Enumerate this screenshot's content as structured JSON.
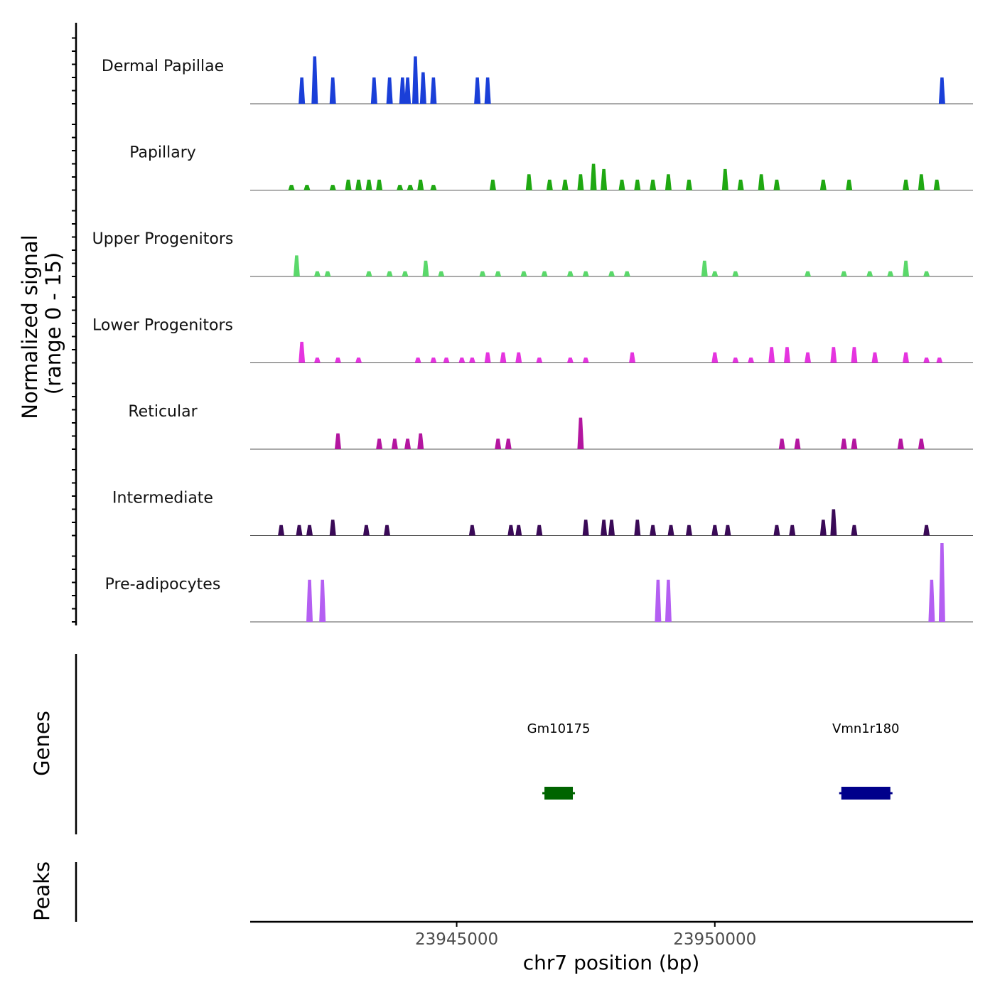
{
  "chart_data": [
    {
      "type": "area",
      "panel": "coverage",
      "ylabel": "Normalized signal",
      "ylabel_range": "(range 0 - 15)",
      "ylim": [
        0,
        15
      ],
      "x_range": [
        23941000,
        23955000
      ],
      "tracks": [
        {
          "name": "Dermal Papillae",
          "color": "#1a3fd8",
          "peaks": [
            [
              23942000,
              5
            ],
            [
              23942250,
              9
            ],
            [
              23942600,
              5
            ],
            [
              23943400,
              5
            ],
            [
              23943700,
              5
            ],
            [
              23943950,
              5
            ],
            [
              23944050,
              5
            ],
            [
              23944200,
              9
            ],
            [
              23944350,
              6
            ],
            [
              23944550,
              5
            ],
            [
              23945400,
              5
            ],
            [
              23945600,
              5
            ],
            [
              23954400,
              5
            ]
          ]
        },
        {
          "name": "Papillary",
          "color": "#1fa812",
          "peaks": [
            [
              23941800,
              1
            ],
            [
              23942100,
              1
            ],
            [
              23942600,
              1
            ],
            [
              23942900,
              2
            ],
            [
              23943100,
              2
            ],
            [
              23943300,
              2
            ],
            [
              23943500,
              2
            ],
            [
              23943900,
              1
            ],
            [
              23944100,
              1
            ],
            [
              23944300,
              2
            ],
            [
              23944550,
              1
            ],
            [
              23945700,
              2
            ],
            [
              23946400,
              3
            ],
            [
              23946800,
              2
            ],
            [
              23947100,
              2
            ],
            [
              23947400,
              3
            ],
            [
              23947650,
              5
            ],
            [
              23947850,
              4
            ],
            [
              23948200,
              2
            ],
            [
              23948500,
              2
            ],
            [
              23948800,
              2
            ],
            [
              23949100,
              3
            ],
            [
              23949500,
              2
            ],
            [
              23950200,
              4
            ],
            [
              23950500,
              2
            ],
            [
              23950900,
              3
            ],
            [
              23951200,
              2
            ],
            [
              23952100,
              2
            ],
            [
              23952600,
              2
            ],
            [
              23953700,
              2
            ],
            [
              23954000,
              3
            ],
            [
              23954300,
              2
            ]
          ]
        },
        {
          "name": "Upper Progenitors",
          "color": "#5ad86a",
          "peaks": [
            [
              23941900,
              4
            ],
            [
              23942300,
              1
            ],
            [
              23942500,
              1
            ],
            [
              23943300,
              1
            ],
            [
              23943700,
              1
            ],
            [
              23944000,
              1
            ],
            [
              23944400,
              3
            ],
            [
              23944700,
              1
            ],
            [
              23945500,
              1
            ],
            [
              23945800,
              1
            ],
            [
              23946300,
              1
            ],
            [
              23946700,
              1
            ],
            [
              23947200,
              1
            ],
            [
              23947500,
              1
            ],
            [
              23948000,
              1
            ],
            [
              23948300,
              1
            ],
            [
              23949800,
              3
            ],
            [
              23950000,
              1
            ],
            [
              23950400,
              1
            ],
            [
              23951800,
              1
            ],
            [
              23952500,
              1
            ],
            [
              23953000,
              1
            ],
            [
              23953400,
              1
            ],
            [
              23953700,
              3
            ],
            [
              23954100,
              1
            ]
          ]
        },
        {
          "name": "Lower Progenitors",
          "color": "#e534df",
          "peaks": [
            [
              23942000,
              4
            ],
            [
              23942300,
              1
            ],
            [
              23942700,
              1
            ],
            [
              23943100,
              1
            ],
            [
              23944250,
              1
            ],
            [
              23944550,
              1
            ],
            [
              23944800,
              1
            ],
            [
              23945100,
              1
            ],
            [
              23945300,
              1
            ],
            [
              23945600,
              2
            ],
            [
              23945900,
              2
            ],
            [
              23946200,
              2
            ],
            [
              23946600,
              1
            ],
            [
              23947200,
              1
            ],
            [
              23947500,
              1
            ],
            [
              23948400,
              2
            ],
            [
              23950000,
              2
            ],
            [
              23950400,
              1
            ],
            [
              23950700,
              1
            ],
            [
              23951100,
              3
            ],
            [
              23951400,
              3
            ],
            [
              23951800,
              2
            ],
            [
              23952300,
              3
            ],
            [
              23952700,
              3
            ],
            [
              23953100,
              2
            ],
            [
              23953700,
              2
            ],
            [
              23954100,
              1
            ],
            [
              23954350,
              1
            ]
          ]
        },
        {
          "name": "Reticular",
          "color": "#b3169f",
          "peaks": [
            [
              23942700,
              3
            ],
            [
              23943500,
              2
            ],
            [
              23943800,
              2
            ],
            [
              23944050,
              2
            ],
            [
              23944300,
              3
            ],
            [
              23945800,
              2
            ],
            [
              23946000,
              2
            ],
            [
              23947400,
              6
            ],
            [
              23951300,
              2
            ],
            [
              23951600,
              2
            ],
            [
              23952500,
              2
            ],
            [
              23952700,
              2
            ],
            [
              23953600,
              2
            ],
            [
              23954000,
              2
            ]
          ]
        },
        {
          "name": "Intermediate",
          "color": "#3a0a57",
          "peaks": [
            [
              23941600,
              2
            ],
            [
              23941950,
              2
            ],
            [
              23942150,
              2
            ],
            [
              23942600,
              3
            ],
            [
              23943250,
              2
            ],
            [
              23943650,
              2
            ],
            [
              23945300,
              2
            ],
            [
              23946050,
              2
            ],
            [
              23946200,
              2
            ],
            [
              23946600,
              2
            ],
            [
              23947500,
              3
            ],
            [
              23947850,
              3
            ],
            [
              23948000,
              3
            ],
            [
              23948500,
              3
            ],
            [
              23948800,
              2
            ],
            [
              23949150,
              2
            ],
            [
              23949500,
              2
            ],
            [
              23950000,
              2
            ],
            [
              23950250,
              2
            ],
            [
              23951200,
              2
            ],
            [
              23951500,
              2
            ],
            [
              23952100,
              3
            ],
            [
              23952300,
              5
            ],
            [
              23952700,
              2
            ],
            [
              23954100,
              2
            ]
          ]
        },
        {
          "name": "Pre-adipocytes",
          "color": "#b45ff2",
          "peaks": [
            [
              23942150,
              8
            ],
            [
              23942400,
              8
            ],
            [
              23948900,
              8
            ],
            [
              23949100,
              8
            ],
            [
              23954200,
              8
            ],
            [
              23954400,
              15
            ]
          ]
        }
      ]
    },
    {
      "type": "gene_track",
      "panel": "genes",
      "ylabel": "Genes",
      "genes": [
        {
          "name": "Gm10175",
          "start": 23946700,
          "end": 23947250,
          "color": "#006400"
        },
        {
          "name": "Vmn1r180",
          "start": 23952450,
          "end": 23953400,
          "color": "#00008b"
        }
      ]
    },
    {
      "type": "peak_track",
      "panel": "peaks",
      "ylabel": "Peaks",
      "peaks": []
    },
    {
      "type": "axis",
      "xlabel": "chr7 position (bp)",
      "xticks": [
        23945000,
        23950000
      ],
      "xtick_labels": [
        "23945000",
        "23950000"
      ]
    }
  ]
}
